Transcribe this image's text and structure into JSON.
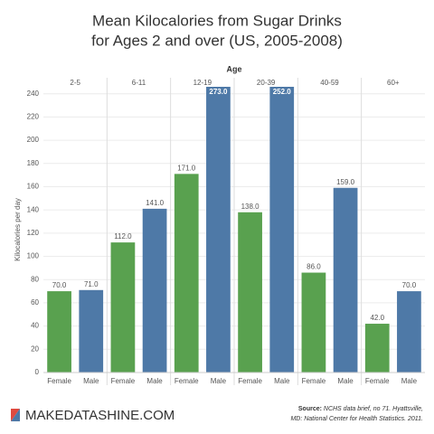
{
  "chart_data": {
    "type": "bar",
    "title": [
      "Mean Kilocalories from Sugar Drinks",
      "for Ages 2 and over (US, 2005-2008)"
    ],
    "facet_label": "Age",
    "y_label": "Kilocalories per day",
    "categories": [
      "2-5",
      "6-11",
      "12-19",
      "20-39",
      "40-59",
      "60+"
    ],
    "series": [
      {
        "name": "Female",
        "color": "#59a14f",
        "values": [
          70,
          112,
          171,
          138,
          86,
          42
        ],
        "value_labels": [
          "70.0",
          "112.0",
          "171.0",
          "138.0",
          "86.0",
          "42.0"
        ]
      },
      {
        "name": "Male",
        "color": "#4e79a7",
        "values": [
          71,
          141,
          273,
          252,
          159,
          70
        ],
        "value_labels": [
          "71.0",
          "141.0",
          "273.0",
          "252.0",
          "159.0",
          "70.0"
        ]
      }
    ],
    "ylim": [
      0,
      246
    ],
    "yticks": [
      0,
      20,
      40,
      60,
      80,
      100,
      120,
      140,
      160,
      180,
      200,
      220,
      240
    ],
    "grid": true,
    "source_label": "Source:",
    "source": [
      "NCHS data brief, no 71. Hyattsville,",
      "MD: National Center for Health Statistics. 2011."
    ],
    "brand": "MAKEDATASHINE.COM"
  }
}
